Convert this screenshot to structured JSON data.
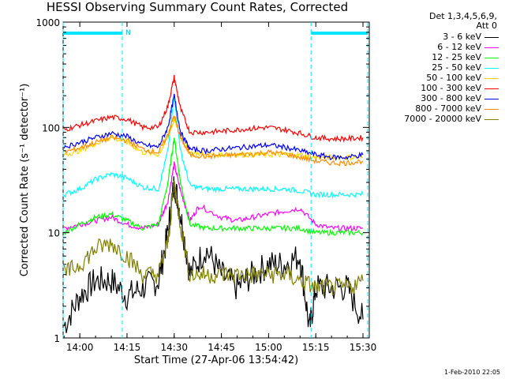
{
  "chart_data": {
    "type": "line",
    "title": "HESSI Observing Summary Count Rates, Corrected",
    "xlabel": "Start Time (27-Apr-06 13:54:42)",
    "ylabel": "Corrected Count Rate (s⁻¹ detector⁻¹)",
    "y_scale": "log",
    "ylim": [
      1,
      1000
    ],
    "xlim": [
      "13:54:42",
      "15:32:00"
    ],
    "x_ticks": [
      "14:00",
      "14:15",
      "14:30",
      "14:45",
      "15:00",
      "15:15",
      "15:30"
    ],
    "y_ticks": [
      "1",
      "10",
      "100",
      "1000"
    ],
    "grid": false,
    "legend": {
      "position": "right",
      "header": [
        "Det 1,3,4,5,6,9,",
        "Att 0"
      ]
    },
    "annotations": [
      {
        "type": "night",
        "label": "",
        "from": "13:54:42",
        "to": "14:13:30"
      },
      {
        "type": "night",
        "label": "",
        "from": "15:13:30",
        "to": "15:31:30"
      },
      {
        "type": "saa_flag",
        "label": "N",
        "at": "14:13:30"
      }
    ],
    "series": [
      {
        "name": "3 - 6 keV",
        "color": "#000000",
        "x": [
          "13:55",
          "14:00",
          "14:05",
          "14:10",
          "14:15",
          "14:20",
          "14:25",
          "14:28",
          "14:30",
          "14:32",
          "14:35",
          "14:40",
          "14:45",
          "14:50",
          "14:55",
          "15:00",
          "15:05",
          "15:10",
          "15:13",
          "15:15",
          "15:20",
          "15:25",
          "15:30"
        ],
        "y": [
          1.3,
          2.5,
          3.5,
          3.5,
          2.5,
          3,
          3.5,
          10,
          30,
          15,
          4,
          7,
          4,
          3,
          4,
          5,
          5,
          6,
          1.2,
          3,
          3,
          3,
          1.5
        ]
      },
      {
        "name": "6 - 12 keV",
        "color": "#ff00ff",
        "x": [
          "13:55",
          "14:00",
          "14:05",
          "14:10",
          "14:15",
          "14:20",
          "14:25",
          "14:28",
          "14:30",
          "14:32",
          "14:35",
          "14:38",
          "14:45",
          "14:50",
          "14:55",
          "15:00",
          "15:05",
          "15:10",
          "15:15",
          "15:20",
          "15:25",
          "15:30"
        ],
        "y": [
          11,
          12,
          13,
          14,
          12,
          11,
          12,
          20,
          45,
          25,
          13,
          18,
          14,
          13,
          14,
          15,
          16,
          17,
          12,
          11,
          11,
          11
        ]
      },
      {
        "name": "12 - 25 keV",
        "color": "#00ff00",
        "x": [
          "13:55",
          "14:00",
          "14:05",
          "14:10",
          "14:15",
          "14:20",
          "14:25",
          "14:28",
          "14:30",
          "14:32",
          "14:35",
          "14:40",
          "14:45",
          "14:50",
          "14:55",
          "15:00",
          "15:05",
          "15:10",
          "15:15",
          "15:20",
          "15:25",
          "15:30"
        ],
        "y": [
          10,
          12,
          14,
          15,
          13,
          11,
          12,
          30,
          80,
          30,
          12,
          11,
          11,
          11,
          11,
          11,
          11,
          11,
          10,
          10,
          10,
          10
        ]
      },
      {
        "name": "25 - 50 keV",
        "color": "#00ffff",
        "x": [
          "13:55",
          "14:00",
          "14:05",
          "14:10",
          "14:15",
          "14:20",
          "14:25",
          "14:28",
          "14:30",
          "14:32",
          "14:35",
          "14:40",
          "14:45",
          "14:50",
          "14:55",
          "15:00",
          "15:05",
          "15:10",
          "15:15",
          "15:20",
          "15:25",
          "15:30"
        ],
        "y": [
          23,
          26,
          32,
          36,
          33,
          27,
          26,
          60,
          200,
          60,
          28,
          26,
          26,
          26,
          26,
          26,
          26,
          25,
          23,
          23,
          23,
          23
        ]
      },
      {
        "name": "50 - 100 keV",
        "color": "#ffd700",
        "x": [
          "13:55",
          "14:00",
          "14:05",
          "14:10",
          "14:15",
          "14:20",
          "14:25",
          "14:28",
          "14:30",
          "14:32",
          "14:35",
          "14:40",
          "14:45",
          "14:50",
          "14:55",
          "15:00",
          "15:05",
          "15:10",
          "15:15",
          "15:20",
          "15:25",
          "15:30"
        ],
        "y": [
          55,
          60,
          70,
          80,
          72,
          58,
          55,
          80,
          120,
          80,
          58,
          55,
          55,
          55,
          55,
          55,
          55,
          55,
          52,
          52,
          52,
          52
        ]
      },
      {
        "name": "100 - 300 keV",
        "color": "#ff0000",
        "x": [
          "13:55",
          "14:00",
          "14:05",
          "14:10",
          "14:15",
          "14:20",
          "14:25",
          "14:28",
          "14:30",
          "14:32",
          "14:35",
          "14:40",
          "14:45",
          "14:50",
          "14:55",
          "15:00",
          "15:05",
          "15:10",
          "15:15",
          "15:20",
          "15:25",
          "15:30"
        ],
        "y": [
          95,
          105,
          115,
          125,
          120,
          100,
          100,
          160,
          300,
          150,
          90,
          90,
          92,
          95,
          98,
          100,
          95,
          88,
          80,
          78,
          78,
          80
        ]
      },
      {
        "name": "300 - 800 keV",
        "color": "#0000ff",
        "x": [
          "13:55",
          "14:00",
          "14:05",
          "14:10",
          "14:15",
          "14:20",
          "14:25",
          "14:28",
          "14:30",
          "14:32",
          "14:35",
          "14:40",
          "14:45",
          "14:50",
          "14:55",
          "15:00",
          "15:05",
          "15:10",
          "15:15",
          "15:20",
          "15:25",
          "15:30"
        ],
        "y": [
          65,
          72,
          80,
          88,
          82,
          68,
          65,
          100,
          200,
          90,
          62,
          60,
          62,
          64,
          66,
          68,
          65,
          60,
          55,
          52,
          52,
          55
        ]
      },
      {
        "name": "800 - 7000 keV",
        "color": "#ff8c00",
        "x": [
          "13:55",
          "14:00",
          "14:05",
          "14:10",
          "14:15",
          "14:20",
          "14:25",
          "14:28",
          "14:30",
          "14:32",
          "14:35",
          "14:40",
          "14:45",
          "14:50",
          "14:55",
          "15:00",
          "15:05",
          "15:10",
          "15:15",
          "15:20",
          "15:25",
          "15:30"
        ],
        "y": [
          58,
          64,
          72,
          80,
          75,
          62,
          58,
          85,
          130,
          80,
          55,
          53,
          54,
          55,
          56,
          58,
          56,
          52,
          48,
          46,
          46,
          48
        ]
      },
      {
        "name": "7000 - 20000 keV",
        "color": "#808000",
        "x": [
          "13:55",
          "14:00",
          "14:05",
          "14:10",
          "14:15",
          "14:20",
          "14:25",
          "14:28",
          "14:30",
          "14:32",
          "14:35",
          "14:40",
          "14:45",
          "14:50",
          "14:55",
          "15:00",
          "15:05",
          "15:10",
          "15:15",
          "15:20",
          "15:25",
          "15:30"
        ],
        "y": [
          4,
          5,
          7,
          8,
          6,
          4,
          4,
          8,
          30,
          12,
          4,
          4,
          4,
          4,
          4,
          4,
          4,
          3.5,
          3,
          3,
          3,
          3.5
        ]
      }
    ]
  },
  "footer": "1-Feb-2010 22:05"
}
